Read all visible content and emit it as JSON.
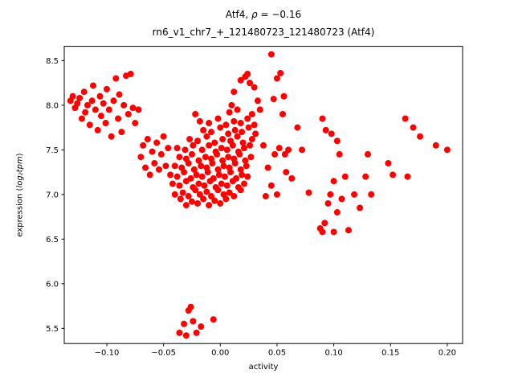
{
  "figure": {
    "title_prefix": "Atf4, ",
    "title_rho": "ρ",
    "title_rest": " = −0.16",
    "subtitle": "rn6_v1_chr7_+_121480723_121480723 (Atf4)",
    "xlabel": "activity",
    "ylabel_prefix": "expression (",
    "ylabel_math": "log₂tpm",
    "ylabel_suffix": ")"
  },
  "chart_data": {
    "type": "scatter",
    "title": "Atf4, ρ = −0.16",
    "subtitle": "rn6_v1_chr7_+_121480723_121480723 (Atf4)",
    "xlabel": "activity",
    "ylabel": "expression (log₂tpm)",
    "legend": "none",
    "grid": false,
    "marker_color": "#ff0000",
    "marker_radius": 4,
    "xlim": [
      -0.1375,
      0.2135
    ],
    "ylim": [
      5.33,
      8.66
    ],
    "x_ticks": [
      -0.1,
      -0.05,
      0.0,
      0.05,
      0.1,
      0.15,
      0.2
    ],
    "x_tick_labels": [
      "−0.10",
      "−0.05",
      "0.00",
      "0.05",
      "0.10",
      "0.15",
      "0.20"
    ],
    "y_ticks": [
      5.5,
      6.0,
      6.5,
      7.0,
      7.5,
      8.0,
      8.5
    ],
    "y_tick_labels": [
      "5.5",
      "6.0",
      "6.5",
      "7.0",
      "7.5",
      "8.0",
      "8.5"
    ],
    "points": [
      [
        -0.132,
        8.05
      ],
      [
        -0.13,
        8.1
      ],
      [
        -0.128,
        7.97
      ],
      [
        -0.126,
        8.02
      ],
      [
        -0.124,
        8.08
      ],
      [
        -0.122,
        7.85
      ],
      [
        -0.12,
        8.15
      ],
      [
        -0.119,
        7.92
      ],
      [
        -0.117,
        8.0
      ],
      [
        -0.115,
        7.78
      ],
      [
        -0.113,
        8.05
      ],
      [
        -0.112,
        8.22
      ],
      [
        -0.11,
        7.95
      ],
      [
        -0.108,
        7.72
      ],
      [
        -0.106,
        8.1
      ],
      [
        -0.105,
        7.88
      ],
      [
        -0.103,
        8.02
      ],
      [
        -0.101,
        7.8
      ],
      [
        -0.1,
        8.18
      ],
      [
        -0.098,
        7.95
      ],
      [
        -0.096,
        7.65
      ],
      [
        -0.094,
        8.05
      ],
      [
        -0.092,
        8.3
      ],
      [
        -0.09,
        7.85
      ],
      [
        -0.089,
        8.12
      ],
      [
        -0.087,
        7.7
      ],
      [
        -0.085,
        8.0
      ],
      [
        -0.083,
        8.33
      ],
      [
        -0.081,
        7.9
      ],
      [
        -0.079,
        8.35
      ],
      [
        -0.077,
        7.97
      ],
      [
        -0.075,
        7.8
      ],
      [
        -0.072,
        7.95
      ],
      [
        -0.07,
        7.42
      ],
      [
        -0.068,
        7.55
      ],
      [
        -0.066,
        7.3
      ],
      [
        -0.064,
        7.62
      ],
      [
        -0.062,
        7.22
      ],
      [
        -0.06,
        7.48
      ],
      [
        -0.058,
        7.35
      ],
      [
        -0.056,
        7.58
      ],
      [
        -0.054,
        7.28
      ],
      [
        -0.052,
        7.45
      ],
      [
        -0.05,
        7.65
      ],
      [
        -0.048,
        7.32
      ],
      [
        -0.046,
        7.52
      ],
      [
        -0.035,
        6.95
      ],
      [
        -0.03,
        6.88
      ],
      [
        -0.025,
        6.92
      ],
      [
        -0.02,
        6.9
      ],
      [
        -0.015,
        6.95
      ],
      [
        -0.01,
        6.88
      ],
      [
        -0.005,
        6.93
      ],
      [
        0.0,
        6.9
      ],
      [
        0.005,
        6.95
      ],
      [
        -0.04,
        7.0
      ],
      [
        -0.033,
        7.02
      ],
      [
        -0.028,
        6.98
      ],
      [
        -0.022,
        7.05
      ],
      [
        -0.018,
        7.0
      ],
      [
        -0.012,
        7.03
      ],
      [
        -0.008,
        6.98
      ],
      [
        -0.002,
        7.05
      ],
      [
        0.003,
        7.0
      ],
      [
        0.008,
        7.02
      ],
      [
        0.012,
        6.98
      ],
      [
        0.018,
        7.05
      ],
      [
        -0.042,
        7.12
      ],
      [
        -0.036,
        7.1
      ],
      [
        -0.03,
        7.15
      ],
      [
        -0.024,
        7.08
      ],
      [
        -0.019,
        7.12
      ],
      [
        -0.014,
        7.1
      ],
      [
        -0.009,
        7.15
      ],
      [
        -0.004,
        7.08
      ],
      [
        0.001,
        7.12
      ],
      [
        0.006,
        7.1
      ],
      [
        0.011,
        7.15
      ],
      [
        0.016,
        7.08
      ],
      [
        0.021,
        7.12
      ],
      [
        -0.044,
        7.22
      ],
      [
        -0.038,
        7.2
      ],
      [
        -0.032,
        7.25
      ],
      [
        -0.026,
        7.18
      ],
      [
        -0.021,
        7.22
      ],
      [
        -0.016,
        7.2
      ],
      [
        -0.011,
        7.25
      ],
      [
        -0.006,
        7.18
      ],
      [
        -0.001,
        7.22
      ],
      [
        0.004,
        7.2
      ],
      [
        0.009,
        7.25
      ],
      [
        0.014,
        7.18
      ],
      [
        0.019,
        7.22
      ],
      [
        0.024,
        7.2
      ],
      [
        -0.04,
        7.32
      ],
      [
        -0.034,
        7.3
      ],
      [
        -0.028,
        7.35
      ],
      [
        -0.023,
        7.28
      ],
      [
        -0.017,
        7.32
      ],
      [
        -0.012,
        7.3
      ],
      [
        -0.007,
        7.35
      ],
      [
        -0.002,
        7.28
      ],
      [
        0.003,
        7.32
      ],
      [
        0.008,
        7.3
      ],
      [
        0.013,
        7.35
      ],
      [
        0.018,
        7.28
      ],
      [
        0.023,
        7.32
      ],
      [
        -0.036,
        7.42
      ],
      [
        -0.03,
        7.4
      ],
      [
        -0.025,
        7.45
      ],
      [
        -0.019,
        7.38
      ],
      [
        -0.013,
        7.42
      ],
      [
        -0.008,
        7.4
      ],
      [
        -0.003,
        7.45
      ],
      [
        0.002,
        7.38
      ],
      [
        0.007,
        7.42
      ],
      [
        0.012,
        7.4
      ],
      [
        0.017,
        7.45
      ],
      [
        0.022,
        7.38
      ],
      [
        0.027,
        7.42
      ],
      [
        -0.038,
        7.52
      ],
      [
        -0.031,
        7.5
      ],
      [
        -0.024,
        7.55
      ],
      [
        -0.016,
        7.5
      ],
      [
        -0.01,
        7.55
      ],
      [
        -0.004,
        7.48
      ],
      [
        0.001,
        7.52
      ],
      [
        0.006,
        7.5
      ],
      [
        0.011,
        7.55
      ],
      [
        0.016,
        7.48
      ],
      [
        0.021,
        7.52
      ],
      [
        0.026,
        7.55
      ],
      [
        -0.027,
        7.62
      ],
      [
        -0.02,
        7.6
      ],
      [
        -0.012,
        7.65
      ],
      [
        -0.005,
        7.58
      ],
      [
        0.002,
        7.62
      ],
      [
        0.009,
        7.6
      ],
      [
        0.015,
        7.65
      ],
      [
        0.02,
        7.58
      ],
      [
        0.028,
        7.62
      ],
      [
        -0.015,
        7.72
      ],
      [
        -0.008,
        7.7
      ],
      [
        0.0,
        7.75
      ],
      [
        0.007,
        7.68
      ],
      [
        0.013,
        7.72
      ],
      [
        0.019,
        7.7
      ],
      [
        0.025,
        7.75
      ],
      [
        0.031,
        7.68
      ],
      [
        -0.018,
        7.82
      ],
      [
        -0.01,
        7.8
      ],
      [
        -0.002,
        7.85
      ],
      [
        0.005,
        7.78
      ],
      [
        0.012,
        7.82
      ],
      [
        0.018,
        7.8
      ],
      [
        0.024,
        7.85
      ],
      [
        0.03,
        7.78
      ],
      [
        -0.022,
        7.9
      ],
      [
        0.008,
        7.92
      ],
      [
        0.015,
        7.95
      ],
      [
        0.028,
        7.9
      ],
      [
        0.035,
        7.95
      ],
      [
        0.01,
        8.0
      ],
      [
        0.033,
        8.05
      ],
      [
        0.012,
        8.15
      ],
      [
        0.018,
        8.28
      ],
      [
        0.022,
        8.32
      ],
      [
        0.026,
        8.25
      ],
      [
        0.03,
        8.2
      ],
      [
        0.024,
        8.35
      ],
      [
        0.045,
        8.57
      ],
      [
        0.05,
        8.3
      ],
      [
        0.053,
        8.36
      ],
      [
        0.056,
        8.1
      ],
      [
        0.047,
        8.07
      ],
      [
        0.038,
        7.55
      ],
      [
        0.042,
        7.3
      ],
      [
        0.045,
        7.1
      ],
      [
        0.048,
        7.45
      ],
      [
        0.052,
        7.52
      ],
      [
        0.055,
        7.9
      ],
      [
        0.058,
        7.25
      ],
      [
        0.06,
        7.5
      ],
      [
        0.063,
        7.18
      ],
      [
        0.068,
        7.75
      ],
      [
        0.072,
        7.5
      ],
      [
        0.078,
        7.02
      ],
      [
        0.04,
        6.98
      ],
      [
        0.05,
        7.0
      ],
      [
        0.057,
        7.45
      ],
      [
        0.088,
        6.62
      ],
      [
        0.09,
        6.58
      ],
      [
        0.092,
        6.68
      ],
      [
        0.095,
        6.9
      ],
      [
        0.097,
        7.0
      ],
      [
        0.1,
        6.58
      ],
      [
        0.1,
        7.15
      ],
      [
        0.103,
        6.8
      ],
      [
        0.105,
        7.45
      ],
      [
        0.107,
        6.95
      ],
      [
        0.11,
        7.2
      ],
      [
        0.113,
        6.6
      ],
      [
        0.118,
        7.0
      ],
      [
        0.123,
        6.85
      ],
      [
        0.128,
        7.2
      ],
      [
        0.13,
        7.45
      ],
      [
        0.133,
        7.0
      ],
      [
        0.09,
        7.85
      ],
      [
        0.093,
        7.72
      ],
      [
        0.098,
        7.68
      ],
      [
        0.103,
        7.6
      ],
      [
        0.148,
        7.35
      ],
      [
        0.152,
        7.22
      ],
      [
        0.163,
        7.85
      ],
      [
        0.165,
        7.2
      ],
      [
        0.17,
        7.75
      ],
      [
        0.176,
        7.65
      ],
      [
        0.19,
        7.55
      ],
      [
        0.2,
        7.5
      ],
      [
        -0.036,
        5.45
      ],
      [
        -0.032,
        5.55
      ],
      [
        -0.03,
        5.42
      ],
      [
        -0.028,
        5.7
      ],
      [
        -0.026,
        5.74
      ],
      [
        -0.024,
        5.58
      ],
      [
        -0.021,
        5.45
      ],
      [
        -0.017,
        5.52
      ],
      [
        -0.006,
        5.6
      ]
    ]
  }
}
